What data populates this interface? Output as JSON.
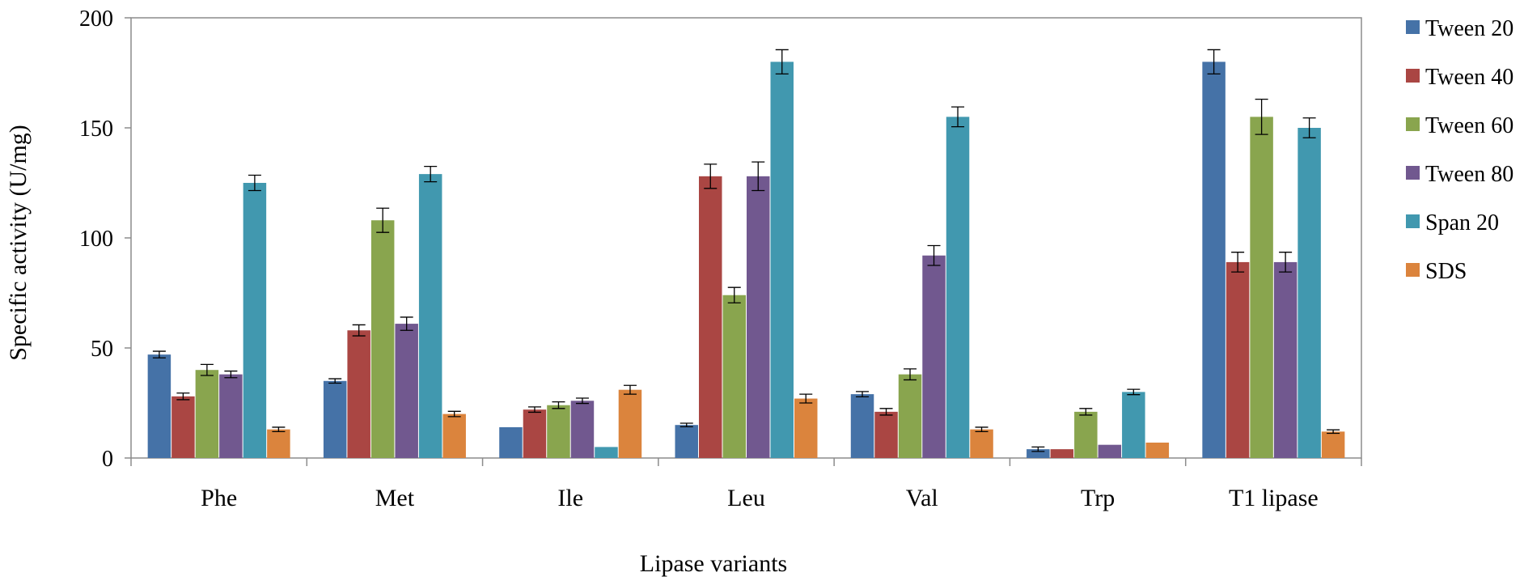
{
  "chart_data": {
    "type": "bar",
    "title": "",
    "xlabel": "Lipase variants",
    "ylabel": "Specific activity (U/mg)",
    "ylim": [
      0,
      200
    ],
    "yticks": [
      "0",
      "50",
      "100",
      "150",
      "200"
    ],
    "categories": [
      "Phe",
      "Met",
      "Ile",
      "Leu",
      "Val",
      "Trp",
      "T1 lipase"
    ],
    "legend_position": "right",
    "grid": false,
    "series": [
      {
        "name": "Tween 20",
        "color": "#4572A7",
        "values": [
          47,
          35,
          14,
          15,
          29,
          4,
          180
        ],
        "errors": [
          1.5,
          1,
          0,
          0.8,
          1.2,
          1,
          5.5
        ]
      },
      {
        "name": "Tween 40",
        "color": "#AA4643",
        "values": [
          28,
          58,
          22,
          128,
          21,
          4,
          89
        ],
        "errors": [
          1.5,
          2.5,
          1.2,
          5.5,
          1.5,
          0,
          4.5
        ]
      },
      {
        "name": "Tween 60",
        "color": "#89A54E",
        "values": [
          40,
          108,
          24,
          74,
          38,
          21,
          155
        ],
        "errors": [
          2.5,
          5.5,
          1.5,
          3.5,
          2.5,
          1.5,
          8
        ]
      },
      {
        "name": "Tween 80",
        "color": "#71588F",
        "values": [
          38,
          61,
          26,
          128,
          92,
          6,
          89
        ],
        "errors": [
          1.5,
          3,
          1.2,
          6.5,
          4.5,
          0,
          4.5
        ]
      },
      {
        "name": "Span 20",
        "color": "#4198AF",
        "values": [
          125,
          129,
          5,
          180,
          155,
          30,
          150
        ],
        "errors": [
          3.5,
          3.5,
          0,
          5.5,
          4.5,
          1.2,
          4.5
        ]
      },
      {
        "name": "SDS",
        "color": "#DB843D",
        "values": [
          13,
          20,
          31,
          27,
          13,
          7,
          12
        ],
        "errors": [
          1,
          1.2,
          2,
          2,
          1,
          0,
          0.8
        ]
      }
    ]
  }
}
